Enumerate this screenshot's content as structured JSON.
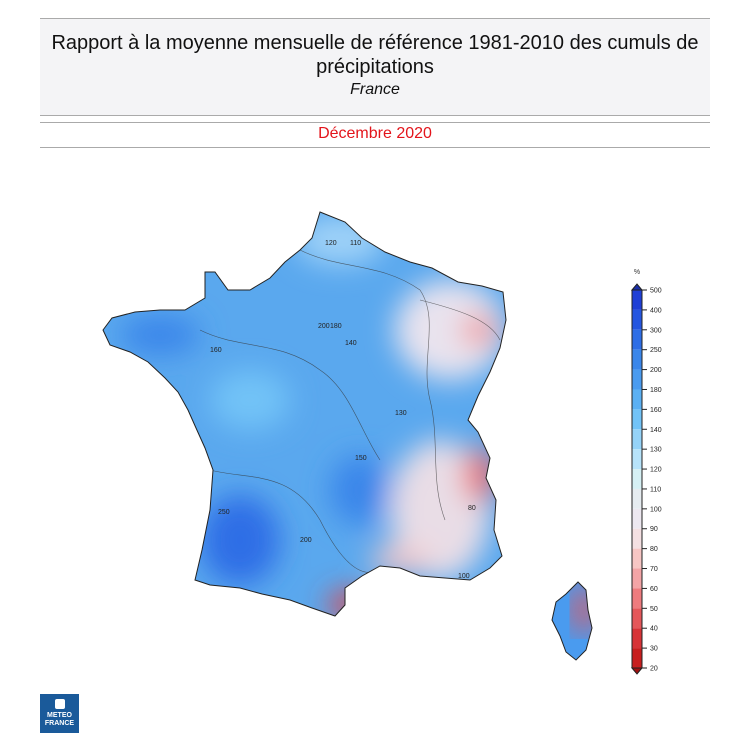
{
  "header": {
    "title": "Rapport à la moyenne mensuelle de référence 1981-2010 des cumuls de précipitations",
    "region": "France"
  },
  "period": "Décembre 2020",
  "legend": {
    "unit": "%",
    "ticks": [
      "500",
      "400",
      "300",
      "250",
      "200",
      "180",
      "160",
      "140",
      "130",
      "120",
      "110",
      "100",
      "90",
      "80",
      "70",
      "60",
      "50",
      "40",
      "30",
      "20"
    ],
    "colors": [
      "#1f3fd6",
      "#2556e0",
      "#2e6ee6",
      "#3a86ea",
      "#4a9bef",
      "#5bb0f3",
      "#72c3f7",
      "#95d3f8",
      "#b7e3fa",
      "#d6f0f4",
      "#e6ecf0",
      "#ede8f0",
      "#f4e0e2",
      "#f7c6c4",
      "#f3a4a6",
      "#ee7b7e",
      "#e4575a",
      "#d73337",
      "#c81e1e"
    ],
    "top_arrow_color": "#1a2fa8",
    "bottom_arrow_color": "#a01010"
  },
  "map_labels": [
    "120",
    "110",
    "200",
    "180",
    "140",
    "160",
    "130",
    "250",
    "200",
    "100",
    "80",
    "150"
  ],
  "logo": {
    "line1": "METEO",
    "line2": "FRANCE"
  }
}
